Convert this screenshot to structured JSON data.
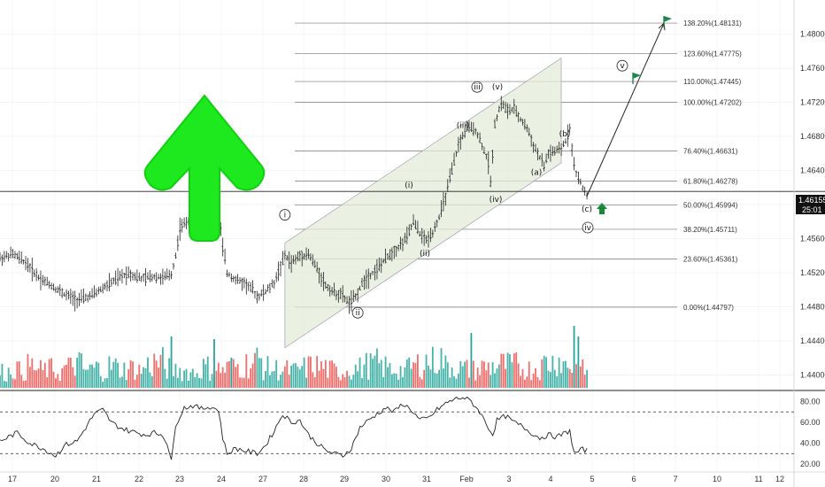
{
  "chart_data": {
    "type": "candlestick",
    "price_axis": {
      "ticks": [
        "1.48000",
        "1.47600",
        "1.47200",
        "1.46800",
        "1.46400",
        "1.46000",
        "1.45600",
        "1.45200",
        "1.44800",
        "1.44400",
        "1.44000"
      ],
      "range": [
        1.4385,
        1.4835
      ]
    },
    "current_price": {
      "value": "1.46155",
      "countdown": "25:01"
    },
    "rsi_axis": {
      "ticks": [
        "80.00",
        "60.00",
        "40.00",
        "20.00"
      ],
      "range": [
        15,
        88
      ],
      "bands": [
        70,
        30
      ]
    },
    "time_axis": {
      "labels": [
        "17",
        "20",
        "21",
        "22",
        "23",
        "24",
        "27",
        "28",
        "29",
        "30",
        "31",
        "Feb",
        "3",
        "4",
        "5",
        "6",
        "7",
        "10",
        "11",
        "12"
      ]
    },
    "fib_levels": [
      {
        "label": "138.20%(1.48131)",
        "price": 1.48131
      },
      {
        "label": "123.60%(1.47775)",
        "price": 1.47775
      },
      {
        "label": "110.00%(1.47445)",
        "price": 1.47445
      },
      {
        "label": "100.00%(1.47202)",
        "price": 1.47202
      },
      {
        "label": "76.40%(1.46631)",
        "price": 1.46631
      },
      {
        "label": "61.80%(1.46278)",
        "price": 1.46278
      },
      {
        "label": "50.00%(1.45994)",
        "price": 1.45994
      },
      {
        "label": "38.20%(1.45711)",
        "price": 1.45711
      },
      {
        "label": "23.60%(1.45361)",
        "price": 1.45361
      },
      {
        "label": "0.00%(1.44797)",
        "price": 1.44797
      }
    ],
    "wave_labels": [
      {
        "text": "i",
        "circled": true
      },
      {
        "text": "ii",
        "circled": true
      },
      {
        "text": "(i)",
        "circled": false
      },
      {
        "text": "(ii)",
        "circled": false
      },
      {
        "text": "(iii)",
        "circled": false
      },
      {
        "text": "iii",
        "circled": true
      },
      {
        "text": "(iv)",
        "circled": false
      },
      {
        "text": "(v)",
        "circled": false
      },
      {
        "text": "(a)",
        "circled": false
      },
      {
        "text": "(b)",
        "circled": false
      },
      {
        "text": "(c)",
        "circled": false
      },
      {
        "text": "iv",
        "circled": true
      },
      {
        "text": "v",
        "circled": true
      }
    ],
    "price_path": [
      [
        0,
        1.4537
      ],
      [
        6,
        1.4542
      ],
      [
        12,
        1.4532
      ],
      [
        18,
        1.4515
      ],
      [
        24,
        1.4505
      ],
      [
        30,
        1.4495
      ],
      [
        36,
        1.4488
      ],
      [
        42,
        1.4492
      ],
      [
        48,
        1.4502
      ],
      [
        54,
        1.4512
      ],
      [
        60,
        1.452
      ],
      [
        66,
        1.4513
      ],
      [
        72,
        1.4516
      ],
      [
        76,
        1.4514
      ],
      [
        80,
        1.4518
      ],
      [
        82,
        1.454
      ],
      [
        84,
        1.4572
      ],
      [
        88,
        1.4582
      ],
      [
        92,
        1.459
      ],
      [
        96,
        1.4598
      ],
      [
        100,
        1.46
      ],
      [
        102,
        1.459
      ],
      [
        104,
        1.455
      ],
      [
        106,
        1.452
      ],
      [
        110,
        1.4512
      ],
      [
        114,
        1.4508
      ],
      [
        118,
        1.45
      ],
      [
        120,
        1.4492
      ],
      [
        124,
        1.4498
      ],
      [
        128,
        1.4508
      ],
      [
        130,
        1.4522
      ],
      [
        133,
        1.454
      ],
      [
        136,
        1.4532
      ],
      [
        140,
        1.454
      ],
      [
        144,
        1.4542
      ],
      [
        148,
        1.4525
      ],
      [
        152,
        1.4505
      ],
      [
        156,
        1.4497
      ],
      [
        160,
        1.4493
      ],
      [
        163,
        1.4484
      ],
      [
        166,
        1.4492
      ],
      [
        170,
        1.4512
      ],
      [
        174,
        1.452
      ],
      [
        178,
        1.453
      ],
      [
        182,
        1.4542
      ],
      [
        186,
        1.455
      ],
      [
        190,
        1.4562
      ],
      [
        193,
        1.458
      ],
      [
        196,
        1.4566
      ],
      [
        199,
        1.4558
      ],
      [
        202,
        1.4568
      ],
      [
        205,
        1.4585
      ],
      [
        208,
        1.461
      ],
      [
        211,
        1.464
      ],
      [
        214,
        1.467
      ],
      [
        218,
        1.469
      ],
      [
        222,
        1.4688
      ],
      [
        225,
        1.467
      ],
      [
        228,
        1.465
      ],
      [
        229,
        1.4625
      ],
      [
        231,
        1.4695
      ],
      [
        234,
        1.472
      ],
      [
        237,
        1.471
      ],
      [
        240,
        1.4712
      ],
      [
        243,
        1.47
      ],
      [
        246,
        1.469
      ],
      [
        249,
        1.467
      ],
      [
        252,
        1.4655
      ],
      [
        254,
        1.4645
      ],
      [
        256,
        1.466
      ],
      [
        259,
        1.4662
      ],
      [
        262,
        1.4665
      ],
      [
        264,
        1.4675
      ],
      [
        266,
        1.469
      ],
      [
        268,
        1.4645
      ],
      [
        270,
        1.463
      ],
      [
        272,
        1.462
      ],
      [
        274,
        1.4612
      ]
    ],
    "projection": [
      [
        274,
        1.461
      ],
      [
        298,
        1.4813
      ]
    ],
    "volume_profile": [
      0.3,
      0.5,
      0.35,
      0.6,
      0.4,
      0.45,
      0.3,
      0.55,
      0.7,
      0.4,
      0.5,
      0.35,
      0.6,
      0.45,
      0.5,
      0.4,
      0.65,
      0.8,
      0.5,
      0.4,
      0.35,
      0.3,
      0.55,
      0.4,
      0.45,
      0.5,
      0.6,
      0.7,
      0.9,
      0.5,
      0.45,
      0.4,
      0.35,
      0.5,
      0.6,
      0.55,
      0.4,
      0.3,
      0.45,
      0.5,
      0.65,
      0.75,
      0.55,
      0.45,
      0.4,
      0.6,
      0.7,
      0.85,
      1.0,
      0.6,
      0.5,
      0.45,
      0.4,
      0.55,
      0.6,
      0.7,
      0.65,
      0.5,
      0.45,
      0.55,
      0.8,
      0.95,
      0.7,
      0.5,
      0.4
    ],
    "rsi": [
      [
        0,
        42
      ],
      [
        8,
        50
      ],
      [
        14,
        40
      ],
      [
        20,
        35
      ],
      [
        26,
        28
      ],
      [
        30,
        38
      ],
      [
        36,
        42
      ],
      [
        40,
        55
      ],
      [
        44,
        68
      ],
      [
        48,
        72
      ],
      [
        52,
        60
      ],
      [
        56,
        55
      ],
      [
        60,
        52
      ],
      [
        64,
        50
      ],
      [
        68,
        48
      ],
      [
        72,
        50
      ],
      [
        76,
        48
      ],
      [
        78,
        40
      ],
      [
        80,
        22
      ],
      [
        82,
        58
      ],
      [
        86,
        74
      ],
      [
        90,
        76
      ],
      [
        94,
        73
      ],
      [
        98,
        75
      ],
      [
        102,
        72
      ],
      [
        104,
        45
      ],
      [
        106,
        30
      ],
      [
        110,
        35
      ],
      [
        116,
        32
      ],
      [
        120,
        30
      ],
      [
        124,
        38
      ],
      [
        128,
        52
      ],
      [
        132,
        68
      ],
      [
        136,
        60
      ],
      [
        140,
        62
      ],
      [
        144,
        48
      ],
      [
        148,
        40
      ],
      [
        152,
        33
      ],
      [
        156,
        30
      ],
      [
        160,
        28
      ],
      [
        164,
        35
      ],
      [
        168,
        55
      ],
      [
        172,
        62
      ],
      [
        176,
        68
      ],
      [
        180,
        74
      ],
      [
        184,
        70
      ],
      [
        188,
        78
      ],
      [
        192,
        72
      ],
      [
        196,
        62
      ],
      [
        200,
        64
      ],
      [
        204,
        72
      ],
      [
        208,
        78
      ],
      [
        212,
        82
      ],
      [
        216,
        84
      ],
      [
        220,
        80
      ],
      [
        224,
        70
      ],
      [
        228,
        55
      ],
      [
        230,
        48
      ],
      [
        232,
        62
      ],
      [
        236,
        66
      ],
      [
        240,
        60
      ],
      [
        244,
        56
      ],
      [
        248,
        50
      ],
      [
        252,
        45
      ],
      [
        256,
        48
      ],
      [
        260,
        46
      ],
      [
        264,
        50
      ],
      [
        266,
        52
      ],
      [
        268,
        30
      ],
      [
        270,
        32
      ],
      [
        272,
        34
      ],
      [
        274,
        33
      ]
    ]
  }
}
